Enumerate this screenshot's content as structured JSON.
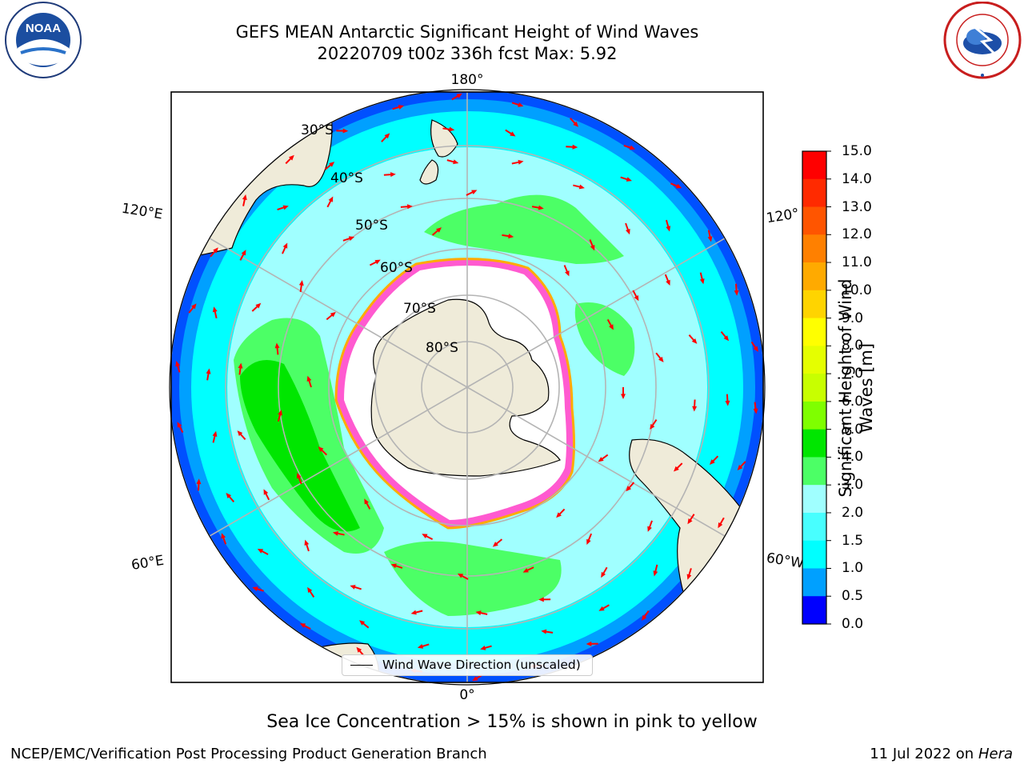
{
  "title": {
    "line1": "GEFS MEAN Antarctic Significant Height of Wind Waves",
    "line2": "20220709 t00z 336h fcst   Max: 5.92"
  },
  "logos": {
    "noaa": {
      "text": "NOAA",
      "icon": "noaa-logo"
    },
    "nws": {
      "icon": "nws-logo"
    }
  },
  "map": {
    "projection": "south-polar-stereographic",
    "longitude_labels": {
      "top": "180°",
      "bottom": "0°",
      "left_upper": "120°E",
      "left_lower": "60°E",
      "right_upper": "120°",
      "right_lower": "60°W"
    },
    "latitude_labels": [
      "30°S",
      "40°S",
      "50°S",
      "60°S",
      "70°S",
      "80°S"
    ],
    "colors": {
      "land": "#efebd9",
      "ice_free_ocean_low": "#00ffff",
      "sea_ice_area": "#ffffff",
      "arrow": "#ff0000",
      "graticule": "#b4b4b4"
    }
  },
  "legend": {
    "label": "Wind Wave Direction (unscaled)"
  },
  "colorbar": {
    "label": "Significant Height of Wind Waves [m]",
    "label_line1": "Significant Height of Wind",
    "label_line2": "Waves [m]",
    "ticks": [
      "15.0",
      "14.0",
      "13.0",
      "12.0",
      "11.0",
      "10.0",
      "9.0",
      "8.0",
      "7.0",
      "6.0",
      "5.0",
      "4.0",
      "3.0",
      "2.0",
      "1.5",
      "1.0",
      "0.5",
      "0.0"
    ],
    "colors": [
      "#ff0000",
      "#ff2a00",
      "#ff5500",
      "#ff8000",
      "#ffaa00",
      "#ffd400",
      "#ffff00",
      "#e5ff00",
      "#c8ff00",
      "#7fff00",
      "#00e600",
      "#4cff66",
      "#a0ffff",
      "#48ffff",
      "#00ffff",
      "#00a0ff",
      "#0050ff",
      "#0000ff"
    ]
  },
  "note": "Sea Ice Concentration > 15% is shown in pink to yellow",
  "footer": {
    "left": "NCEP/EMC/Verification Post Processing Product Generation Branch",
    "right_prefix": "11 Jul 2022 on ",
    "right_host": "Hera"
  }
}
